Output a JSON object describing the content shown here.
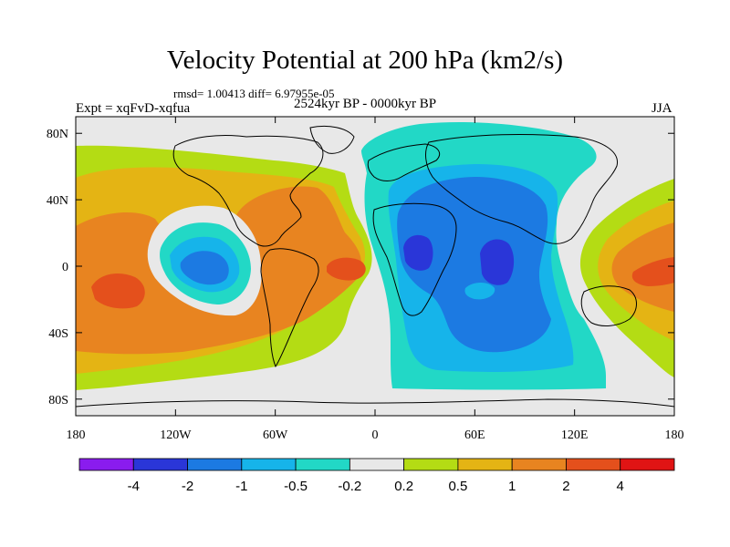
{
  "title": "Velocity Potential at 200 hPa (km2/s)",
  "stats": "rmsd= 1.00413 diff= 6.97955e-05",
  "left_label": "Expt = xqFvD-xqfua",
  "center_label": "2524kyr BP - 0000kyr BP",
  "right_label": "JJA",
  "chart_data": {
    "type": "heatmap",
    "variable": "Velocity Potential at 200 hPa",
    "units": "km2/s",
    "experiment": "xqFvD-xqfua",
    "period": "2524kyr BP - 0000kyr BP",
    "season": "JJA",
    "rmsd": 1.00413,
    "diff": 6.97955e-05,
    "lon_range": [
      -180,
      180
    ],
    "lat_range": [
      -90,
      90
    ],
    "x_ticks": [
      {
        "value": -180,
        "label": "180"
      },
      {
        "value": -120,
        "label": "120W"
      },
      {
        "value": -60,
        "label": "60W"
      },
      {
        "value": 0,
        "label": "0"
      },
      {
        "value": 60,
        "label": "60E"
      },
      {
        "value": 120,
        "label": "120E"
      },
      {
        "value": 180,
        "label": "180"
      }
    ],
    "y_ticks": [
      {
        "value": 80,
        "label": "80N"
      },
      {
        "value": 40,
        "label": "40N"
      },
      {
        "value": 0,
        "label": "0"
      },
      {
        "value": -40,
        "label": "40S"
      },
      {
        "value": -80,
        "label": "80S"
      }
    ],
    "contour_levels": [
      -4,
      -2,
      -1,
      -0.5,
      -0.2,
      0.2,
      0.5,
      1,
      2,
      4
    ],
    "colorbar_labels": [
      "-4",
      "-2",
      "-1",
      "-0.5",
      "-0.2",
      "0.2",
      "0.5",
      "1",
      "2",
      "4"
    ],
    "colors": [
      "#8a1cee",
      "#2a36d8",
      "#1c7ae2",
      "#16b4ea",
      "#22d8c6",
      "#e8e8e8",
      "#b4dc14",
      "#e4b414",
      "#e88420",
      "#e4501c",
      "#e01414"
    ],
    "anomaly_centers": [
      {
        "name": "Central Pacific positive",
        "lon": -160,
        "lat": -10,
        "value": 3
      },
      {
        "name": "East Pacific negative",
        "lon": -112,
        "lat": 0,
        "value": -1.5
      },
      {
        "name": "Tropical Atlantic positive",
        "lon": -18,
        "lat": 2,
        "value": 3
      },
      {
        "name": "Africa negative",
        "lon": 25,
        "lat": 10,
        "value": -3
      },
      {
        "name": "Indian Ocean negative",
        "lon": 75,
        "lat": 0,
        "value": -3
      },
      {
        "name": "West Pacific positive",
        "lon": 145,
        "lat": 0,
        "value": 2.5
      }
    ]
  }
}
